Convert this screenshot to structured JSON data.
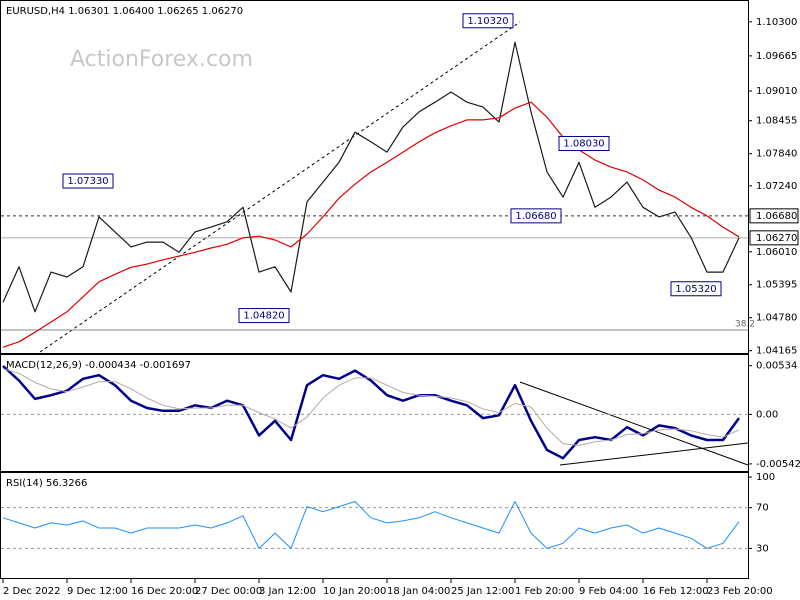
{
  "watermark": "ActionForex.com",
  "chart_data": [
    {
      "type": "line",
      "title": "EURUSD,H4  1.06301 1.06400 1.06265 1.06270",
      "ylim": [
        1.0414,
        1.1067
      ],
      "yticks": [
        {
          "value": 1.103,
          "label": "1.10300"
        },
        {
          "value": 1.09665,
          "label": "1.09665"
        },
        {
          "value": 1.0901,
          "label": "1.09010"
        },
        {
          "value": 1.08455,
          "label": "1.08455"
        },
        {
          "value": 1.0784,
          "label": "1.07840"
        },
        {
          "value": 1.0724,
          "label": "1.07240"
        },
        {
          "value": 1.0601,
          "label": "1.06010"
        },
        {
          "value": 1.05395,
          "label": "1.05395"
        },
        {
          "value": 1.0478,
          "label": "1.04780"
        },
        {
          "value": 1.04165,
          "label": "1.04165"
        }
      ],
      "series": [
        {
          "name": "EURUSD",
          "color": "#1a1a1a",
          "width": 1.2,
          "values": [
            1.0507,
            1.0573,
            1.0489,
            1.0563,
            1.0554,
            1.0573,
            1.0666,
            1.0638,
            1.061,
            1.0619,
            1.0619,
            1.06,
            1.0638,
            1.0647,
            1.0657,
            1.0684,
            1.0563,
            1.0573,
            1.0526,
            1.0694,
            1.0731,
            1.0768,
            1.0824,
            1.0806,
            1.0787,
            1.0834,
            1.0862,
            1.088,
            1.0899,
            1.088,
            1.0871,
            1.0843,
            1.0992,
            1.0862,
            1.075,
            1.0703,
            1.0768,
            1.0684,
            1.0703,
            1.0731,
            1.0684,
            1.0666,
            1.0675,
            1.0628,
            1.0563,
            1.0563,
            1.0627
          ]
        },
        {
          "name": "MA",
          "color": "#e00000",
          "width": 1.2,
          "values": [
            1.0423,
            1.0433,
            1.0451,
            1.047,
            1.0489,
            1.0517,
            1.0545,
            1.0559,
            1.0572,
            1.0578,
            1.0586,
            1.0593,
            1.06,
            1.0608,
            1.0615,
            1.0627,
            1.063,
            1.0623,
            1.061,
            1.0634,
            1.0666,
            1.0701,
            1.0727,
            1.075,
            1.0768,
            1.0787,
            1.0806,
            1.0823,
            1.0836,
            1.0847,
            1.0847,
            1.0851,
            1.0869,
            1.088,
            1.0852,
            1.0815,
            1.0791,
            1.0772,
            1.0759,
            1.075,
            1.0735,
            1.0716,
            1.0703,
            1.0684,
            1.0668,
            1.0647,
            1.0629
          ]
        }
      ],
      "price_lines": [
        {
          "value": 1.0668,
          "label": "1.06680",
          "style": "dashed"
        },
        {
          "value": 1.0627,
          "label": "1.06270",
          "style": "solid"
        }
      ],
      "fib_level": {
        "value": 1.0455,
        "label": "38.2"
      },
      "annotations": [
        {
          "label": "1.10320",
          "value": 1.1032,
          "at": 32
        },
        {
          "label": "1.08030",
          "value": 1.0803,
          "at": 38
        },
        {
          "label": "1.07330",
          "value": 1.0733,
          "at": 7
        },
        {
          "label": "1.06680",
          "value": 1.0668,
          "at": 35
        },
        {
          "label": "1.04820",
          "value": 1.0482,
          "at": 18
        },
        {
          "label": "1.05320",
          "value": 1.0532,
          "at": 45
        }
      ]
    },
    {
      "type": "line",
      "title": "MACD(12,26,9) -0.000434 -0.001697",
      "ylim": [
        -0.0062,
        0.0064
      ],
      "yticks": [
        {
          "value": 0.00534,
          "label": "0.00534"
        },
        {
          "value": 0,
          "label": "0.00"
        },
        {
          "value": -0.005421,
          "label": "-0.005421"
        }
      ],
      "dashed_levels": [
        0
      ],
      "series": [
        {
          "name": "MACD",
          "color": "#00008b",
          "width": 2.5,
          "values": [
            0.0053,
            0.0037,
            0.0017,
            0.0021,
            0.0026,
            0.0039,
            0.0043,
            0.0032,
            0.0015,
            0.0007,
            0.0004,
            0.0004,
            0.001,
            0.0007,
            0.0015,
            0.001,
            -0.0023,
            -0.0007,
            -0.0028,
            0.0032,
            0.0043,
            0.0039,
            0.0048,
            0.0037,
            0.0021,
            0.0015,
            0.0021,
            0.0021,
            0.0015,
            0.001,
            -0.0004,
            -0.0001,
            0.0032,
            -0.0007,
            -0.0039,
            -0.0048,
            -0.0028,
            -0.0025,
            -0.0028,
            -0.0014,
            -0.0023,
            -0.0012,
            -0.0015,
            -0.0023,
            -0.0028,
            -0.0028,
            -0.0004
          ]
        },
        {
          "name": "Signal",
          "color": "#b8a8a8",
          "width": 1,
          "values": [
            0.005,
            0.0045,
            0.0035,
            0.0028,
            0.0025,
            0.003,
            0.0036,
            0.0036,
            0.0028,
            0.0018,
            0.001,
            0.0006,
            0.0007,
            0.0007,
            0.001,
            0.001,
            0.0002,
            -0.0005,
            -0.0015,
            -0.0003,
            0.0018,
            0.0032,
            0.004,
            0.004,
            0.0032,
            0.0024,
            0.0021,
            0.002,
            0.0018,
            0.0014,
            0.0006,
            0.0002,
            0.0012,
            0.0008,
            -0.0015,
            -0.0032,
            -0.0034,
            -0.003,
            -0.0028,
            -0.0022,
            -0.0021,
            -0.0017,
            -0.0016,
            -0.0018,
            -0.0022,
            -0.0025,
            -0.0017
          ]
        }
      ]
    },
    {
      "type": "line",
      "title": "RSI(14) 56.3266",
      "ylim": [
        1,
        103
      ],
      "yticks": [
        100,
        70,
        30
      ],
      "dashed_levels": [
        70,
        30
      ],
      "categories": [
        "2 Dec 2022",
        null,
        null,
        null,
        "9 Dec 12:00",
        null,
        null,
        null,
        "16 Dec 20:00",
        null,
        null,
        null,
        "27 Dec 00:00",
        null,
        null,
        null,
        "3 Jan 12:00",
        null,
        null,
        null,
        "10 Jan 20:00",
        null,
        null,
        null,
        "18 Jan 04:00",
        null,
        null,
        null,
        "25 Jan 12:00",
        null,
        null,
        null,
        "1 Feb 20:00",
        null,
        null,
        null,
        "9 Feb 04:00",
        null,
        null,
        null,
        "16 Feb 12:00",
        null,
        null,
        null,
        "23 Feb 20:00",
        null,
        null
      ],
      "series": [
        {
          "name": "RSI",
          "color": "#1e90ff",
          "width": 1,
          "values": [
            60,
            55,
            50,
            55,
            53,
            57,
            50,
            50,
            45,
            50,
            50,
            50,
            53,
            50,
            55,
            62,
            30,
            45,
            30,
            71,
            66,
            71,
            76,
            60,
            55,
            57,
            60,
            66,
            60,
            55,
            50,
            45,
            76,
            45,
            30,
            35,
            50,
            45,
            50,
            53,
            45,
            50,
            45,
            40,
            30,
            35,
            56.3266
          ]
        }
      ]
    }
  ]
}
